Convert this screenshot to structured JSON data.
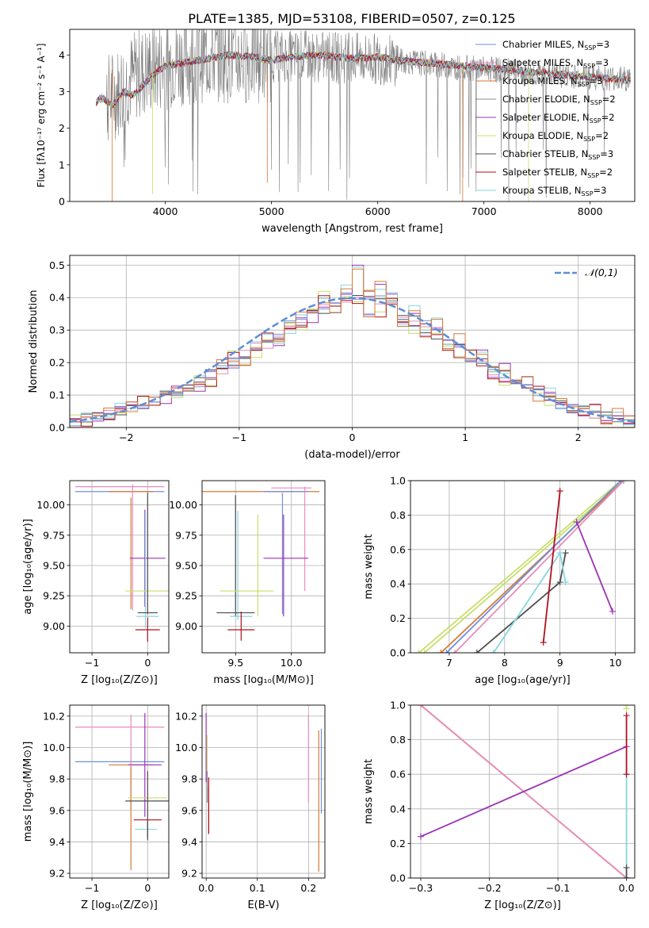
{
  "title": "PLATE=1385, MJD=53108, FIBERID=0507, z=0.125",
  "colors": {
    "chabrier_miles": "#6f8fdc",
    "salpeter_miles": "#e88cbc",
    "kroupa_miles": "#d77a36",
    "chabrier_elodie": "#8a8a8a",
    "salpeter_elodie": "#9b33b5",
    "kroupa_elodie": "#c8df6a",
    "chabrier_stelib": "#4d4d4d",
    "salpeter_stelib": "#b0101e",
    "kroupa_stelib": "#86d6de",
    "gauss": "#5b8fd8"
  },
  "chart_data": [
    {
      "id": "spectrum",
      "type": "line",
      "xlabel": "wavelength [Angstrom, rest frame]",
      "ylabel": "Flux [fλ10⁻¹⁷ erg cm⁻² s⁻¹ A⁻¹]",
      "xlim": [
        3100,
        8420
      ],
      "ylim": [
        0,
        4.7
      ],
      "xticks": [
        4000,
        5000,
        6000,
        7000,
        8000
      ],
      "yticks": [
        0,
        1,
        2,
        3,
        4
      ],
      "legend": "top-right",
      "legend_entries": [
        "Chabrier MILES, N_SSP=3",
        "Salpeter MILES, N_SSP=3",
        "Kroupa MILES, N_SSP=3",
        "Chabrier ELODIE, N_SSP=2",
        "Salpeter ELODIE, N_SSP=2",
        "Kroupa ELODIE, N_SSP=2",
        "Chabrier STELIB, N_SSP=3",
        "Salpeter STELIB, N_SSP=2",
        "Kroupa STELIB, N_SSP=3"
      ],
      "observed_envelope": {
        "x": [
          3350,
          3450,
          3550,
          3650,
          3750,
          3850,
          3950,
          4100,
          4300,
          4500,
          4700,
          5000,
          5300,
          5600,
          5900,
          6200,
          6500,
          6800,
          7100,
          7400,
          7700,
          8000,
          8300
        ],
        "y": [
          2.75,
          2.8,
          3.0,
          3.3,
          3.5,
          3.6,
          3.7,
          3.85,
          3.95,
          3.98,
          3.92,
          3.95,
          3.98,
          3.92,
          3.9,
          3.85,
          3.75,
          3.65,
          3.6,
          3.5,
          3.45,
          3.4,
          3.35
        ]
      },
      "model_curve": {
        "x": [
          3350,
          3400,
          3500,
          3600,
          3700,
          3800,
          3900,
          4000,
          4200,
          4400,
          4600,
          4800,
          5000,
          5200,
          5400,
          5600,
          5800,
          6000,
          6200,
          6400,
          6600,
          6800,
          7000,
          7200,
          7400,
          7600,
          7800,
          8000,
          8200,
          8380
        ],
        "y": [
          2.7,
          2.85,
          2.6,
          3.0,
          2.9,
          3.2,
          3.5,
          3.7,
          3.8,
          3.9,
          4.0,
          3.95,
          3.85,
          3.95,
          4.0,
          3.95,
          3.9,
          3.95,
          3.85,
          3.8,
          3.75,
          3.7,
          3.65,
          3.6,
          3.55,
          3.5,
          3.45,
          3.4,
          3.35,
          3.3
        ]
      }
    },
    {
      "id": "residuals",
      "type": "histogram",
      "xlabel": "(data-model)/error",
      "ylabel": "Normed distribution",
      "xlim": [
        -2.5,
        2.5
      ],
      "ylim": [
        0,
        0.53
      ],
      "xticks": [
        -2,
        -1,
        0,
        1,
        2
      ],
      "yticks": [
        0.0,
        0.1,
        0.2,
        0.3,
        0.4,
        0.5
      ],
      "legend": "top-right",
      "legend_label": "𝒩(0,1)",
      "bin_width": 0.1,
      "bins_start": -2.5,
      "hist_values": [
        [
          0.02,
          0.025,
          0.035,
          0.04,
          0.05,
          0.06,
          0.07,
          0.085,
          0.1,
          0.11,
          0.125,
          0.14,
          0.16,
          0.18,
          0.2,
          0.22,
          0.24,
          0.26,
          0.285,
          0.31,
          0.33,
          0.35,
          0.37,
          0.39,
          0.4,
          0.405,
          0.4,
          0.39,
          0.37,
          0.35,
          0.33,
          0.31,
          0.29,
          0.26,
          0.24,
          0.22,
          0.2,
          0.18,
          0.16,
          0.14,
          0.12,
          0.105,
          0.09,
          0.075,
          0.06,
          0.05,
          0.04,
          0.035,
          0.03,
          0.025
        ],
        [
          0.015,
          0.03,
          0.025,
          0.05,
          0.055,
          0.075,
          0.065,
          0.1,
          0.09,
          0.115,
          0.13,
          0.12,
          0.15,
          0.19,
          0.21,
          0.2,
          0.25,
          0.27,
          0.26,
          0.3,
          0.35,
          0.34,
          0.38,
          0.36,
          0.43,
          0.5,
          0.36,
          0.44,
          0.4,
          0.33,
          0.37,
          0.28,
          0.32,
          0.25,
          0.27,
          0.2,
          0.23,
          0.17,
          0.18,
          0.13,
          0.145,
          0.1,
          0.11,
          0.07,
          0.08,
          0.05,
          0.055,
          0.03,
          0.04,
          0.02
        ],
        [
          0.02,
          0.02,
          0.04,
          0.035,
          0.06,
          0.05,
          0.08,
          0.075,
          0.11,
          0.1,
          0.13,
          0.15,
          0.14,
          0.18,
          0.22,
          0.21,
          0.23,
          0.28,
          0.27,
          0.32,
          0.31,
          0.37,
          0.42,
          0.38,
          0.4,
          0.39,
          0.41,
          0.36,
          0.38,
          0.34,
          0.3,
          0.32,
          0.27,
          0.25,
          0.22,
          0.24,
          0.19,
          0.17,
          0.15,
          0.16,
          0.11,
          0.12,
          0.08,
          0.09,
          0.06,
          0.05,
          0.045,
          0.03,
          0.03,
          0.02
        ]
      ]
    },
    {
      "id": "age_vs_Z",
      "type": "errorbar",
      "xlabel": "Z [log₁₀(Z/Z⊙)]",
      "ylabel": "age  [log₁₀(age/yr)]",
      "xlim": [
        -1.4,
        0.38
      ],
      "ylim": [
        8.78,
        10.2
      ],
      "xticks": [
        -1,
        0
      ],
      "yticks": [
        9.0,
        9.25,
        9.5,
        9.75,
        10.0
      ],
      "points": [
        {
          "x": -0.5,
          "y": 10.11,
          "xerr": 0.8,
          "yerr": 0.0,
          "c": "chabrier_miles"
        },
        {
          "x": -0.5,
          "y": 10.15,
          "xerr": 0.8,
          "yerr": 0.0,
          "c": "salpeter_miles"
        },
        {
          "x": -0.3,
          "y": 10.11,
          "xerr": 0.4,
          "yerr": 0.0,
          "c": "kroupa_miles"
        },
        {
          "x": -0.27,
          "y": 9.65,
          "xerr": 0.0,
          "yerr": 0.52,
          "c": "salpeter_miles"
        },
        {
          "x": -0.3,
          "y": 9.6,
          "xerr": 0.0,
          "yerr": 0.46,
          "c": "kroupa_miles"
        },
        {
          "x": 0.0,
          "y": 9.56,
          "xerr": 0.32,
          "yerr": 0.0,
          "c": "salpeter_elodie"
        },
        {
          "x": -0.05,
          "y": 9.56,
          "xerr": 0.0,
          "yerr": 0.4,
          "c": "salpeter_elodie"
        },
        {
          "x": -0.04,
          "y": 9.46,
          "xerr": 0.0,
          "yerr": 0.48,
          "c": "kroupa_stelib"
        },
        {
          "x": 0.0,
          "y": 9.29,
          "xerr": 0.4,
          "yerr": 0.0,
          "c": "kroupa_elodie"
        },
        {
          "x": 0.0,
          "y": 9.6,
          "xerr": 0.0,
          "yerr": 0.5,
          "c": "chabrier_stelib"
        },
        {
          "x": 0.0,
          "y": 9.11,
          "xerr": 0.18,
          "yerr": 0.0,
          "c": "chabrier_stelib"
        },
        {
          "x": 0.0,
          "y": 9.08,
          "xerr": 0.2,
          "yerr": 0.0,
          "c": "kroupa_stelib"
        },
        {
          "x": 0.0,
          "y": 8.97,
          "xerr": 0.22,
          "yerr": 0.0,
          "c": "salpeter_stelib"
        },
        {
          "x": 0.0,
          "y": 8.97,
          "xerr": 0.0,
          "yerr": 0.1,
          "c": "salpeter_stelib"
        }
      ]
    },
    {
      "id": "age_vs_mass",
      "type": "errorbar",
      "xlabel": "mass [log₁₀(M/M⊙)]",
      "ylabel": "",
      "xlim": [
        9.2,
        10.3
      ],
      "ylim": [
        8.78,
        10.2
      ],
      "xticks": [
        9.5,
        10.0
      ],
      "yticks": [
        9.0,
        9.25,
        9.5,
        9.75,
        10.0
      ],
      "points": [
        {
          "x": 9.68,
          "y": 10.11,
          "xerr": 0.57,
          "yerr": 0.0,
          "c": "kroupa_miles"
        },
        {
          "x": 9.95,
          "y": 10.11,
          "xerr": 0.2,
          "yerr": 0.0,
          "c": "chabrier_miles"
        },
        {
          "x": 10.0,
          "y": 10.14,
          "xerr": 0.18,
          "yerr": 0.0,
          "c": "salpeter_miles"
        },
        {
          "x": 10.12,
          "y": 9.72,
          "xerr": 0.0,
          "yerr": 0.43,
          "c": "salpeter_miles"
        },
        {
          "x": 9.92,
          "y": 9.6,
          "xerr": 0.0,
          "yerr": 0.5,
          "c": "chabrier_miles"
        },
        {
          "x": 9.95,
          "y": 9.56,
          "xerr": 0.2,
          "yerr": 0.0,
          "c": "salpeter_elodie"
        },
        {
          "x": 9.93,
          "y": 9.5,
          "xerr": 0.0,
          "yerr": 0.42,
          "c": "salpeter_elodie"
        },
        {
          "x": 9.7,
          "y": 9.5,
          "xerr": 0.0,
          "yerr": 0.42,
          "c": "kroupa_elodie"
        },
        {
          "x": 9.5,
          "y": 9.58,
          "xerr": 0.0,
          "yerr": 0.5,
          "c": "chabrier_stelib"
        },
        {
          "x": 9.52,
          "y": 9.5,
          "xerr": 0.0,
          "yerr": 0.45,
          "c": "kroupa_stelib"
        },
        {
          "x": 9.6,
          "y": 9.29,
          "xerr": 0.24,
          "yerr": 0.0,
          "c": "kroupa_elodie"
        },
        {
          "x": 9.5,
          "y": 9.11,
          "xerr": 0.17,
          "yerr": 0.0,
          "c": "chabrier_stelib"
        },
        {
          "x": 9.55,
          "y": 9.08,
          "xerr": 0.1,
          "yerr": 0.0,
          "c": "kroupa_stelib"
        },
        {
          "x": 9.55,
          "y": 8.97,
          "xerr": 0.12,
          "yerr": 0.0,
          "c": "salpeter_stelib"
        },
        {
          "x": 9.55,
          "y": 9.0,
          "xerr": 0.0,
          "yerr": 0.12,
          "c": "salpeter_stelib"
        }
      ]
    },
    {
      "id": "weight_vs_age",
      "type": "line",
      "xlabel": "age  [log₁₀(age/yr)]",
      "ylabel": "mass weight",
      "xlim": [
        6.3,
        10.35
      ],
      "ylim": [
        0,
        1.0
      ],
      "xticks": [
        7,
        8,
        9,
        10
      ],
      "yticks": [
        0.0,
        0.2,
        0.4,
        0.6,
        0.8,
        1.0
      ],
      "series": [
        {
          "c": "kroupa_elodie",
          "x": [
            6.45,
            10.1
          ],
          "y": [
            0.0,
            1.0
          ]
        },
        {
          "c": "kroupa_elodie",
          "x": [
            6.55,
            10.15
          ],
          "y": [
            0.0,
            1.0
          ]
        },
        {
          "c": "kroupa_miles",
          "x": [
            6.85,
            10.15
          ],
          "y": [
            0.0,
            1.0
          ]
        },
        {
          "c": "salpeter_miles",
          "x": [
            7.1,
            10.15
          ],
          "y": [
            0.0,
            1.0
          ]
        },
        {
          "c": "chabrier_miles",
          "x": [
            6.95,
            10.1
          ],
          "y": [
            0.0,
            1.0
          ]
        },
        {
          "c": "chabrier_stelib",
          "x": [
            7.5,
            9.0,
            9.1
          ],
          "y": [
            0.0,
            0.41,
            0.58
          ]
        },
        {
          "c": "kroupa_stelib",
          "x": [
            7.8,
            9.0,
            9.1
          ],
          "y": [
            0.0,
            0.58,
            0.41
          ]
        },
        {
          "c": "salpeter_stelib",
          "x": [
            8.7,
            9.0
          ],
          "y": [
            0.06,
            0.94
          ]
        },
        {
          "c": "salpeter_elodie",
          "x": [
            9.3,
            9.95
          ],
          "y": [
            0.76,
            0.24
          ]
        }
      ]
    },
    {
      "id": "mass_vs_Z",
      "type": "errorbar",
      "xlabel": "Z [log₁₀(Z/Z⊙)]",
      "ylabel": "mass [log₁₀(M/M⊙)]",
      "xlim": [
        -1.4,
        0.38
      ],
      "ylim": [
        9.17,
        10.27
      ],
      "xticks": [
        -1,
        0
      ],
      "yticks": [
        9.2,
        9.4,
        9.6,
        9.8,
        10.0,
        10.2
      ],
      "points": [
        {
          "x": -0.5,
          "y": 10.13,
          "xerr": 0.8,
          "yerr": 0.0,
          "c": "salpeter_miles"
        },
        {
          "x": -0.3,
          "y": 9.91,
          "xerr": 0.0,
          "yerr": 0.3,
          "c": "salpeter_miles"
        },
        {
          "x": -0.5,
          "y": 9.91,
          "xerr": 0.8,
          "yerr": 0.0,
          "c": "chabrier_miles"
        },
        {
          "x": -0.3,
          "y": 9.89,
          "xerr": 0.4,
          "yerr": 0.0,
          "c": "kroupa_miles"
        },
        {
          "x": -0.3,
          "y": 9.55,
          "xerr": 0.0,
          "yerr": 0.33,
          "c": "kroupa_miles"
        },
        {
          "x": -0.05,
          "y": 9.89,
          "xerr": 0.3,
          "yerr": 0.0,
          "c": "salpeter_elodie"
        },
        {
          "x": -0.05,
          "y": 9.89,
          "xerr": 0.0,
          "yerr": 0.33,
          "c": "salpeter_elodie"
        },
        {
          "x": 0.0,
          "y": 9.68,
          "xerr": 0.35,
          "yerr": 0.0,
          "c": "kroupa_elodie"
        },
        {
          "x": 0.0,
          "y": 9.66,
          "xerr": 0.4,
          "yerr": 0.0,
          "c": "chabrier_stelib"
        },
        {
          "x": 0.0,
          "y": 9.63,
          "xerr": 0.0,
          "yerr": 0.22,
          "c": "chabrier_stelib"
        },
        {
          "x": 0.0,
          "y": 9.54,
          "xerr": 0.25,
          "yerr": 0.0,
          "c": "salpeter_stelib"
        },
        {
          "x": -0.03,
          "y": 9.48,
          "xerr": 0.2,
          "yerr": 0.0,
          "c": "kroupa_stelib"
        },
        {
          "x": 0.0,
          "y": 9.48,
          "xerr": 0.0,
          "yerr": 0.05,
          "c": "chabrier_stelib"
        }
      ]
    },
    {
      "id": "mass_vs_EBV",
      "type": "errorbar",
      "xlabel": "E(B-V)",
      "ylabel": "",
      "xlim": [
        -0.008,
        0.232
      ],
      "ylim": [
        9.17,
        10.27
      ],
      "xticks": [
        0.0,
        0.1,
        0.2
      ],
      "yticks": [
        9.2,
        9.4,
        9.6,
        9.8,
        10.0,
        10.2
      ],
      "points": [
        {
          "x": 0.0,
          "y": 10.0,
          "xerr": 0.0,
          "yerr": 0.22,
          "c": "salpeter_elodie"
        },
        {
          "x": 0.002,
          "y": 9.95,
          "xerr": 0.0,
          "yerr": 0.13,
          "c": "kroupa_elodie"
        },
        {
          "x": 0.005,
          "y": 9.6,
          "xerr": 0.0,
          "yerr": 0.15,
          "c": "chabrier_stelib"
        },
        {
          "x": 0.005,
          "y": 9.63,
          "xerr": 0.0,
          "yerr": 0.18,
          "c": "salpeter_stelib"
        },
        {
          "x": 0.002,
          "y": 9.75,
          "xerr": 0.0,
          "yerr": 0.1,
          "c": "chabrier_elodie"
        },
        {
          "x": 0.2,
          "y": 9.93,
          "xerr": 0.0,
          "yerr": 0.28,
          "c": "salpeter_miles"
        },
        {
          "x": 0.22,
          "y": 9.66,
          "xerr": 0.0,
          "yerr": 0.45,
          "c": "kroupa_miles"
        },
        {
          "x": 0.225,
          "y": 9.85,
          "xerr": 0.0,
          "yerr": 0.27,
          "c": "chabrier_miles"
        }
      ]
    },
    {
      "id": "weight_vs_Z",
      "type": "line",
      "xlabel": "Z [log₁₀(Z/Z⊙)]",
      "ylabel": "mass weight",
      "xlim": [
        -0.315,
        0.012
      ],
      "ylim": [
        0,
        1.0
      ],
      "xticks": [
        -0.3,
        -0.2,
        -0.1,
        0.0
      ],
      "yticks": [
        0.0,
        0.2,
        0.4,
        0.6,
        0.8,
        1.0
      ],
      "series": [
        {
          "c": "kroupa_miles",
          "x": [
            -0.3,
            0.0
          ],
          "y": [
            1.0,
            0.0
          ]
        },
        {
          "c": "salpeter_miles",
          "x": [
            -0.3,
            0.0
          ],
          "y": [
            1.0,
            0.0
          ]
        },
        {
          "c": "salpeter_elodie",
          "x": [
            -0.3,
            0.0
          ],
          "y": [
            0.24,
            0.76
          ]
        },
        {
          "c": "kroupa_stelib",
          "x": [
            0.0,
            0.0
          ],
          "y": [
            0.0,
            0.6
          ]
        },
        {
          "c": "salpeter_stelib",
          "x": [
            0.0,
            0.0
          ],
          "y": [
            0.6,
            0.94
          ]
        },
        {
          "c": "chabrier_stelib",
          "x": [
            0.0,
            0.0
          ],
          "y": [
            0.0,
            0.06
          ]
        },
        {
          "c": "kroupa_elodie",
          "x": [
            0.0,
            0.0
          ],
          "y": [
            0.98,
            1.0
          ]
        }
      ]
    }
  ]
}
